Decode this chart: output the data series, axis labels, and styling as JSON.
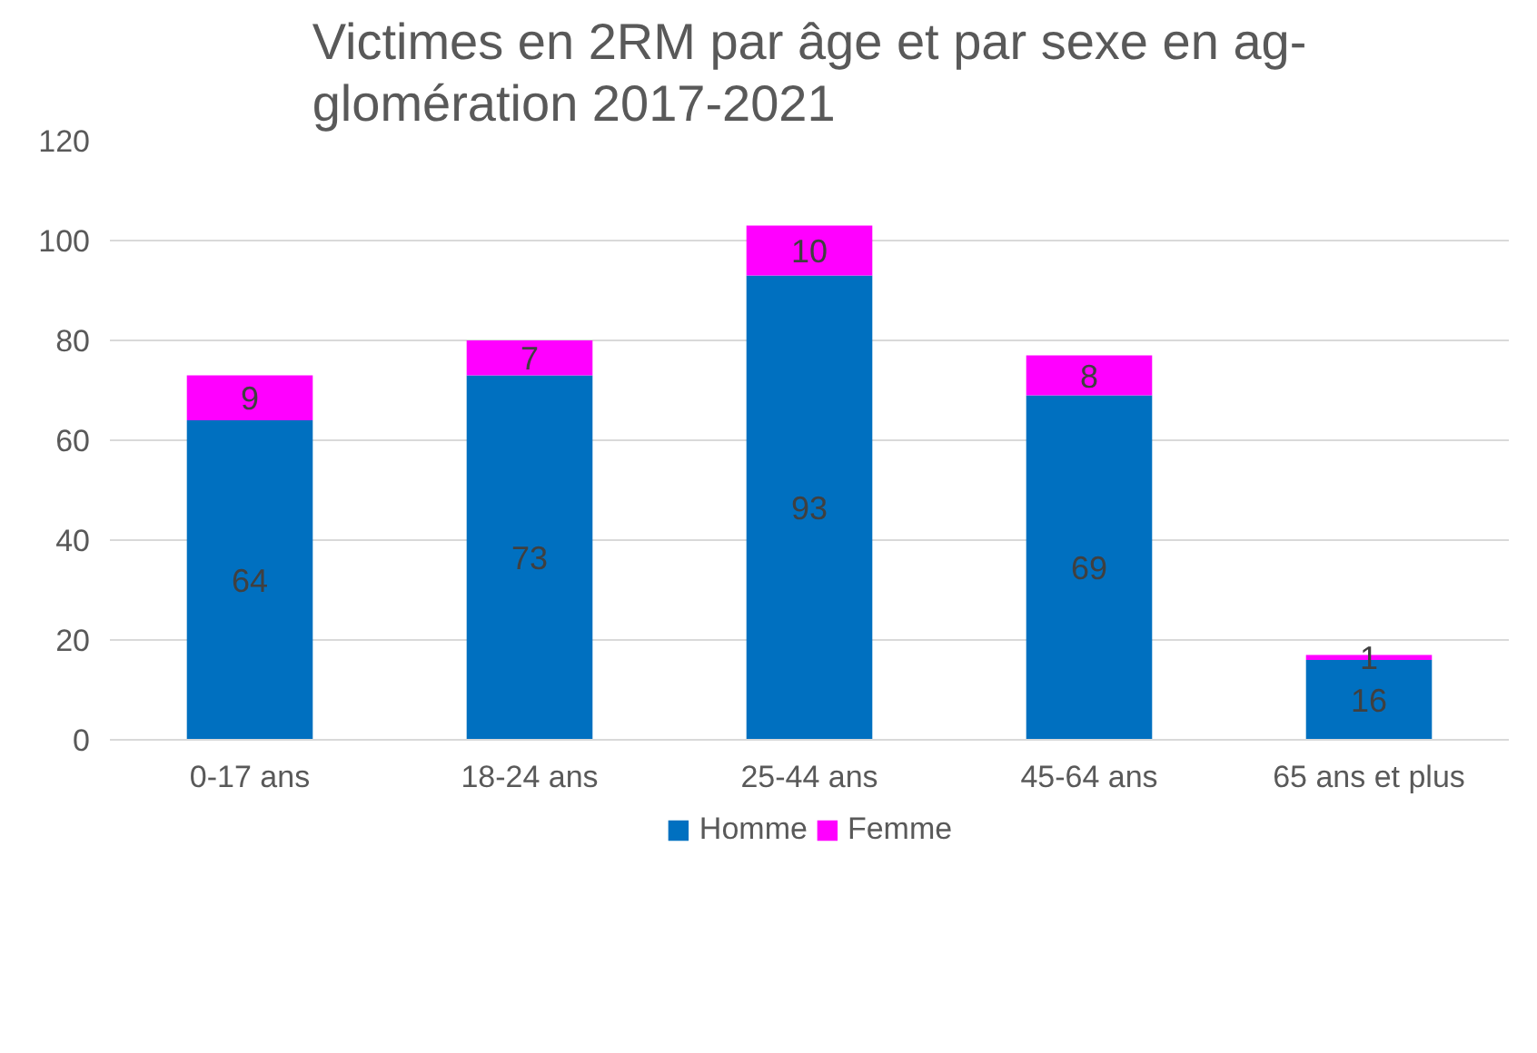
{
  "chart_data": {
    "type": "bar",
    "title": "Victimes en 2RM par âge et par sexe en ag-\nglomération 2017-2021",
    "categories": [
      "0-17 ans",
      "18-24 ans",
      "25-44 ans",
      "45-64 ans",
      "65 ans et plus"
    ],
    "stacked": true,
    "series": [
      {
        "name": "Homme",
        "color": "#0070c0",
        "values": [
          64,
          73,
          93,
          69,
          16
        ]
      },
      {
        "name": "Femme",
        "color": "#ff00ff",
        "values": [
          9,
          7,
          10,
          8,
          1
        ]
      }
    ],
    "ylim": [
      0,
      120
    ],
    "yticks": [
      0,
      20,
      40,
      60,
      80,
      100,
      120
    ],
    "grid": "y",
    "legend": "bottom",
    "data_labels": true
  }
}
